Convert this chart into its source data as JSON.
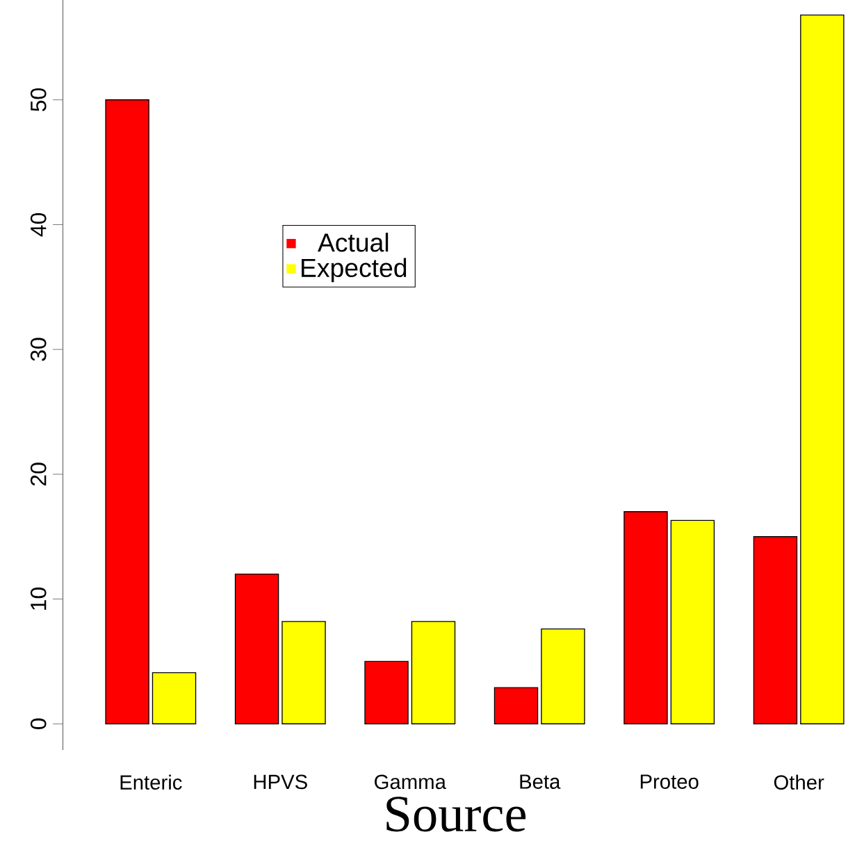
{
  "chart_data": {
    "type": "bar",
    "xlabel": "Source",
    "categories": [
      "Enteric",
      "HPVS",
      "Gamma",
      "Beta",
      "Proteo",
      "Other"
    ],
    "series": [
      {
        "name": "Actual",
        "color": "#ff0000",
        "values": [
          50,
          12,
          5,
          2.9,
          17,
          15
        ]
      },
      {
        "name": "Expected",
        "color": "#ffff00",
        "values": [
          4.1,
          8.2,
          8.2,
          7.6,
          16.3,
          56.8
        ]
      }
    ],
    "ylim": [
      -2.1,
      58
    ],
    "yticks": [
      0,
      10,
      20,
      30,
      40,
      50
    ],
    "legend": "top left"
  }
}
